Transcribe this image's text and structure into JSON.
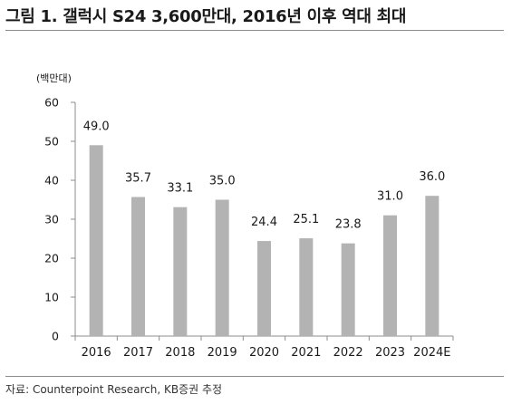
{
  "header": {
    "title": "그림 1. 갤럭시 S24 3,600만대, 2016년 이후 역대 최대"
  },
  "footer": {
    "source": "자료: Counterpoint Research, KB증권 추정"
  },
  "colors": {
    "bar": "#b3b3b3",
    "axis": "#8c8c8c",
    "text": "#1a1a1a"
  },
  "chart_data": {
    "type": "bar",
    "unit_label": "(백만대)",
    "categories": [
      "2016",
      "2017",
      "2018",
      "2019",
      "2020",
      "2021",
      "2022",
      "2023",
      "2024E"
    ],
    "values": [
      49.0,
      35.7,
      33.1,
      35.0,
      24.4,
      25.1,
      23.8,
      31.0,
      36.0
    ],
    "value_labels": [
      "49.0",
      "35.7",
      "33.1",
      "35.0",
      "24.4",
      "25.1",
      "23.8",
      "31.0",
      "36.0"
    ],
    "yticks": [
      0,
      10,
      20,
      30,
      40,
      50,
      60
    ],
    "ylim": [
      0,
      60
    ],
    "grid": false,
    "legend": "none"
  }
}
